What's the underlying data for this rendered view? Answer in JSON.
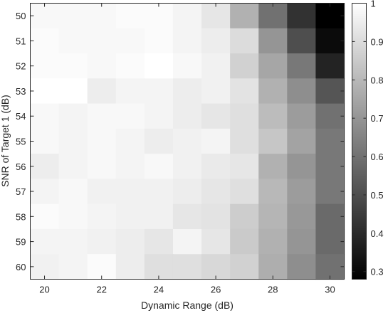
{
  "chart_data": {
    "type": "heatmap",
    "title": "",
    "xlabel": "Dynamic Range (dB)",
    "ylabel": "SNR of Target 1 (dB)",
    "x": [
      20,
      21,
      22,
      23,
      24,
      25,
      26,
      27,
      28,
      29,
      30
    ],
    "y": [
      50,
      51,
      52,
      53,
      54,
      55,
      56,
      57,
      58,
      59,
      60
    ],
    "x_ticks": [
      "20",
      "22",
      "24",
      "26",
      "28",
      "30"
    ],
    "y_ticks": [
      "50",
      "51",
      "52",
      "53",
      "54",
      "55",
      "56",
      "57",
      "58",
      "59",
      "60"
    ],
    "colorbar": {
      "range": [
        0.28,
        1.0
      ],
      "ticks": [
        "1",
        "0.9",
        "0.8",
        "0.7",
        "0.6",
        "0.5",
        "0.4",
        "0.3"
      ],
      "colormap": "gray"
    },
    "values": [
      [
        0.98,
        0.98,
        0.98,
        0.99,
        0.99,
        0.97,
        0.93,
        0.78,
        0.6,
        0.42,
        0.28
      ],
      [
        0.99,
        0.98,
        0.98,
        0.98,
        0.99,
        0.97,
        0.95,
        0.9,
        0.7,
        0.5,
        0.31
      ],
      [
        0.99,
        0.99,
        0.98,
        0.99,
        1.0,
        0.98,
        0.96,
        0.87,
        0.75,
        0.62,
        0.38
      ],
      [
        1.0,
        1.0,
        0.95,
        0.97,
        0.97,
        0.95,
        0.96,
        0.92,
        0.78,
        0.68,
        0.52
      ],
      [
        0.98,
        0.97,
        0.98,
        0.98,
        0.97,
        0.95,
        0.93,
        0.91,
        0.81,
        0.72,
        0.6
      ],
      [
        0.98,
        0.97,
        0.98,
        0.97,
        0.95,
        0.96,
        0.97,
        0.91,
        0.84,
        0.74,
        0.62
      ],
      [
        0.95,
        0.97,
        0.98,
        0.97,
        0.98,
        0.96,
        0.94,
        0.93,
        0.78,
        0.7,
        0.62
      ],
      [
        0.97,
        0.98,
        0.96,
        0.96,
        0.96,
        0.95,
        0.93,
        0.91,
        0.8,
        0.72,
        0.62
      ],
      [
        0.99,
        0.98,
        0.97,
        0.96,
        0.96,
        0.93,
        0.92,
        0.86,
        0.79,
        0.71,
        0.58
      ],
      [
        0.97,
        0.97,
        0.96,
        0.95,
        0.93,
        0.97,
        0.93,
        0.85,
        0.78,
        0.7,
        0.58
      ],
      [
        0.96,
        0.97,
        0.99,
        0.95,
        0.91,
        0.91,
        0.89,
        0.87,
        0.77,
        0.68,
        0.6
      ]
    ],
    "grid": false,
    "legend": "colorbar-right"
  }
}
